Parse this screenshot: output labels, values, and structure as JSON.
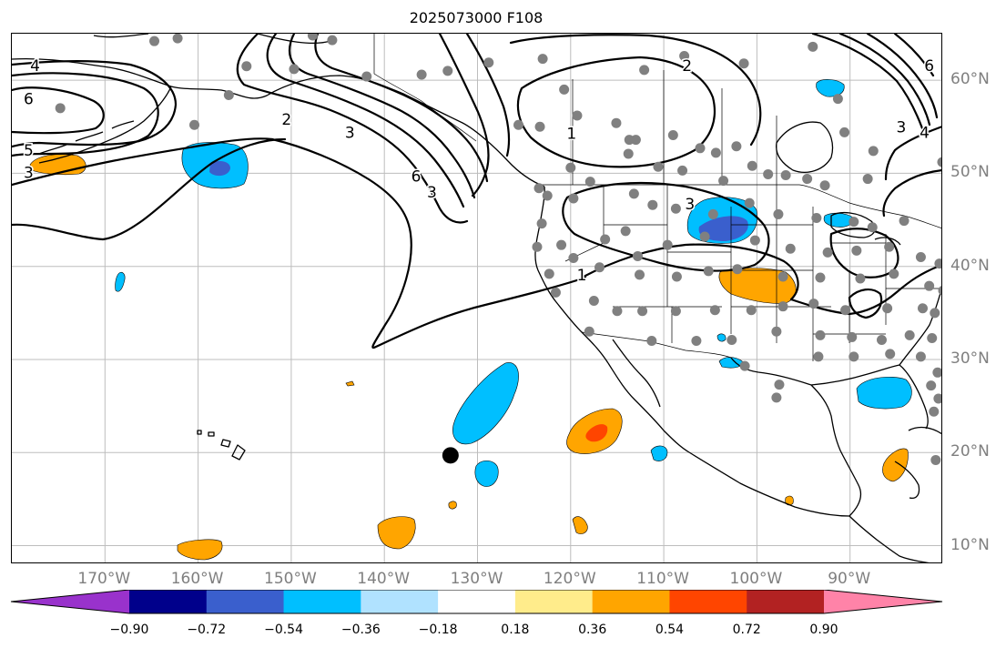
{
  "title": "2025073000 F108",
  "map": {
    "extent_lon": [
      -180,
      -80
    ],
    "extent_lat": [
      8,
      65
    ],
    "gridlines": true,
    "coastline_color": "#000000",
    "marker_color": "#808080",
    "contour_color": "#000000"
  },
  "lon_ticks": [
    {
      "value": -170,
      "label": "170°W"
    },
    {
      "value": -160,
      "label": "160°W"
    },
    {
      "value": -150,
      "label": "150°W"
    },
    {
      "value": -140,
      "label": "140°W"
    },
    {
      "value": -130,
      "label": "130°W"
    },
    {
      "value": -120,
      "label": "120°W"
    },
    {
      "value": -110,
      "label": "110°W"
    },
    {
      "value": -100,
      "label": "100°W"
    },
    {
      "value": -90,
      "label": "90°W"
    }
  ],
  "lat_ticks": [
    {
      "value": 60,
      "label": "60°N"
    },
    {
      "value": 50,
      "label": "50°N"
    },
    {
      "value": 40,
      "label": "40°N"
    },
    {
      "value": 30,
      "label": "30°N"
    },
    {
      "value": 20,
      "label": "20°N"
    },
    {
      "value": 10,
      "label": "10°N"
    }
  ],
  "contour_labels": [
    {
      "text": "4",
      "lon": -177.5,
      "lat": 61.5
    },
    {
      "text": "6",
      "lon": -178.2,
      "lat": 57.9
    },
    {
      "text": "5",
      "lon": -178.2,
      "lat": 52.4
    },
    {
      "text": "3",
      "lon": -178.2,
      "lat": 50.0
    },
    {
      "text": "2",
      "lon": -150.5,
      "lat": 55.7
    },
    {
      "text": "3",
      "lon": -143.7,
      "lat": 54.3
    },
    {
      "text": "6",
      "lon": -136.6,
      "lat": 49.6
    },
    {
      "text": "3",
      "lon": -134.9,
      "lat": 47.9
    },
    {
      "text": "1",
      "lon": -119.9,
      "lat": 54.2
    },
    {
      "text": "2",
      "lon": -107.5,
      "lat": 61.5
    },
    {
      "text": "3",
      "lon": -107.2,
      "lat": 46.6
    },
    {
      "text": "1",
      "lon": -118.8,
      "lat": 39.0
    },
    {
      "text": "6",
      "lon": -81.5,
      "lat": 61.5
    },
    {
      "text": "3",
      "lon": -84.5,
      "lat": 54.9
    },
    {
      "text": "4",
      "lon": -82.0,
      "lat": 54.3
    }
  ],
  "colorbar": {
    "colors": [
      "#9932cc",
      "#00008b",
      "#3a5fcd",
      "#00bfff",
      "#b0e2ff",
      "#ffffff",
      "#ffec8b",
      "#ffa500",
      "#ff4500",
      "#b22222",
      "#ff83a8"
    ],
    "tick_labels": [
      "−0.90",
      "−0.72",
      "−0.54",
      "−0.36",
      "−0.18",
      "0.18",
      "0.36",
      "0.54",
      "0.72",
      "0.90"
    ]
  },
  "stations": [
    [
      -164.7,
      64.2
    ],
    [
      -162.2,
      64.5
    ],
    [
      -154.8,
      61.5
    ],
    [
      -149.7,
      61.2
    ],
    [
      -147.7,
      64.8
    ],
    [
      -145.6,
      64.3
    ],
    [
      -141.9,
      60.4
    ],
    [
      -136.0,
      60.6
    ],
    [
      -133.2,
      61.0
    ],
    [
      -128.8,
      61.9
    ],
    [
      -123.0,
      62.3
    ],
    [
      -120.7,
      59.0
    ],
    [
      -112.1,
      61.1
    ],
    [
      -107.8,
      62.6
    ],
    [
      -101.4,
      61.8
    ],
    [
      -94.0,
      63.6
    ],
    [
      -91.3,
      58.0
    ],
    [
      -156.7,
      58.4
    ],
    [
      -160.4,
      55.2
    ],
    [
      -174.8,
      57.0
    ],
    [
      -125.6,
      55.2
    ],
    [
      -119.3,
      56.2
    ],
    [
      -115.1,
      55.4
    ],
    [
      -113.7,
      53.6
    ],
    [
      -113.0,
      53.6
    ],
    [
      -109.0,
      54.1
    ],
    [
      -106.1,
      52.7
    ],
    [
      -104.4,
      52.2
    ],
    [
      -102.2,
      52.9
    ],
    [
      -100.5,
      50.8
    ],
    [
      -96.9,
      49.8
    ],
    [
      -94.6,
      49.4
    ],
    [
      -123.3,
      55.0
    ],
    [
      -120.0,
      50.6
    ],
    [
      -117.9,
      49.1
    ],
    [
      -113.8,
      52.1
    ],
    [
      -110.6,
      50.7
    ],
    [
      -108.0,
      50.3
    ],
    [
      -103.6,
      49.2
    ],
    [
      -98.8,
      49.9
    ],
    [
      -90.6,
      54.4
    ],
    [
      -87.5,
      52.4
    ],
    [
      -92.7,
      48.7
    ],
    [
      -88.1,
      49.4
    ],
    [
      -80.1,
      51.2
    ],
    [
      -123.4,
      48.4
    ],
    [
      -122.5,
      47.6
    ],
    [
      -119.7,
      47.3
    ],
    [
      -113.2,
      47.8
    ],
    [
      -111.2,
      46.6
    ],
    [
      -108.7,
      46.2
    ],
    [
      -104.7,
      45.6
    ],
    [
      -100.8,
      46.8
    ],
    [
      -97.7,
      45.6
    ],
    [
      -93.6,
      45.2
    ],
    [
      -89.6,
      44.8
    ],
    [
      -87.6,
      44.2
    ],
    [
      -84.2,
      44.9
    ],
    [
      -123.1,
      44.6
    ],
    [
      -121.0,
      42.3
    ],
    [
      -116.3,
      42.9
    ],
    [
      -114.1,
      43.8
    ],
    [
      -112.8,
      41.1
    ],
    [
      -109.6,
      42.3
    ],
    [
      -105.6,
      43.2
    ],
    [
      -100.2,
      42.8
    ],
    [
      -96.4,
      41.9
    ],
    [
      -92.4,
      41.5
    ],
    [
      -89.3,
      41.7
    ],
    [
      -85.8,
      42.1
    ],
    [
      -82.4,
      41.0
    ],
    [
      -80.4,
      40.3
    ],
    [
      -123.6,
      42.1
    ],
    [
      -122.3,
      39.2
    ],
    [
      -119.7,
      40.9
    ],
    [
      -116.9,
      39.9
    ],
    [
      -112.6,
      39.1
    ],
    [
      -108.6,
      38.9
    ],
    [
      -105.2,
      39.5
    ],
    [
      -102.1,
      39.7
    ],
    [
      -97.2,
      38.9
    ],
    [
      -93.2,
      38.8
    ],
    [
      -88.9,
      38.7
    ],
    [
      -85.3,
      39.2
    ],
    [
      -81.5,
      37.9
    ],
    [
      -80.0,
      37.4
    ],
    [
      -121.6,
      37.2
    ],
    [
      -117.5,
      36.3
    ],
    [
      -115.0,
      35.2
    ],
    [
      -112.3,
      35.2
    ],
    [
      -108.7,
      35.2
    ],
    [
      -104.5,
      35.3
    ],
    [
      -100.6,
      35.3
    ],
    [
      -97.2,
      35.7
    ],
    [
      -93.9,
      36.0
    ],
    [
      -90.5,
      35.3
    ],
    [
      -86.0,
      35.5
    ],
    [
      -82.2,
      35.5
    ],
    [
      -80.9,
      35.0
    ],
    [
      -118.0,
      33.0
    ],
    [
      -111.3,
      32.0
    ],
    [
      -106.5,
      32.0
    ],
    [
      -102.7,
      32.1
    ],
    [
      -97.9,
      33.0
    ],
    [
      -93.2,
      32.6
    ],
    [
      -89.8,
      32.4
    ],
    [
      -86.6,
      32.1
    ],
    [
      -83.6,
      32.6
    ],
    [
      -81.2,
      32.3
    ],
    [
      -101.3,
      29.3
    ],
    [
      -97.6,
      27.3
    ],
    [
      -93.4,
      30.3
    ],
    [
      -89.6,
      30.3
    ],
    [
      -85.7,
      30.6
    ],
    [
      -82.4,
      30.3
    ],
    [
      -80.6,
      28.6
    ],
    [
      -97.9,
      25.9
    ],
    [
      -81.3,
      27.2
    ],
    [
      -80.5,
      25.8
    ],
    [
      -81.0,
      24.4
    ],
    [
      -80.8,
      19.2
    ]
  ],
  "black_marker": {
    "lon": -132.9,
    "lat": 19.7
  }
}
